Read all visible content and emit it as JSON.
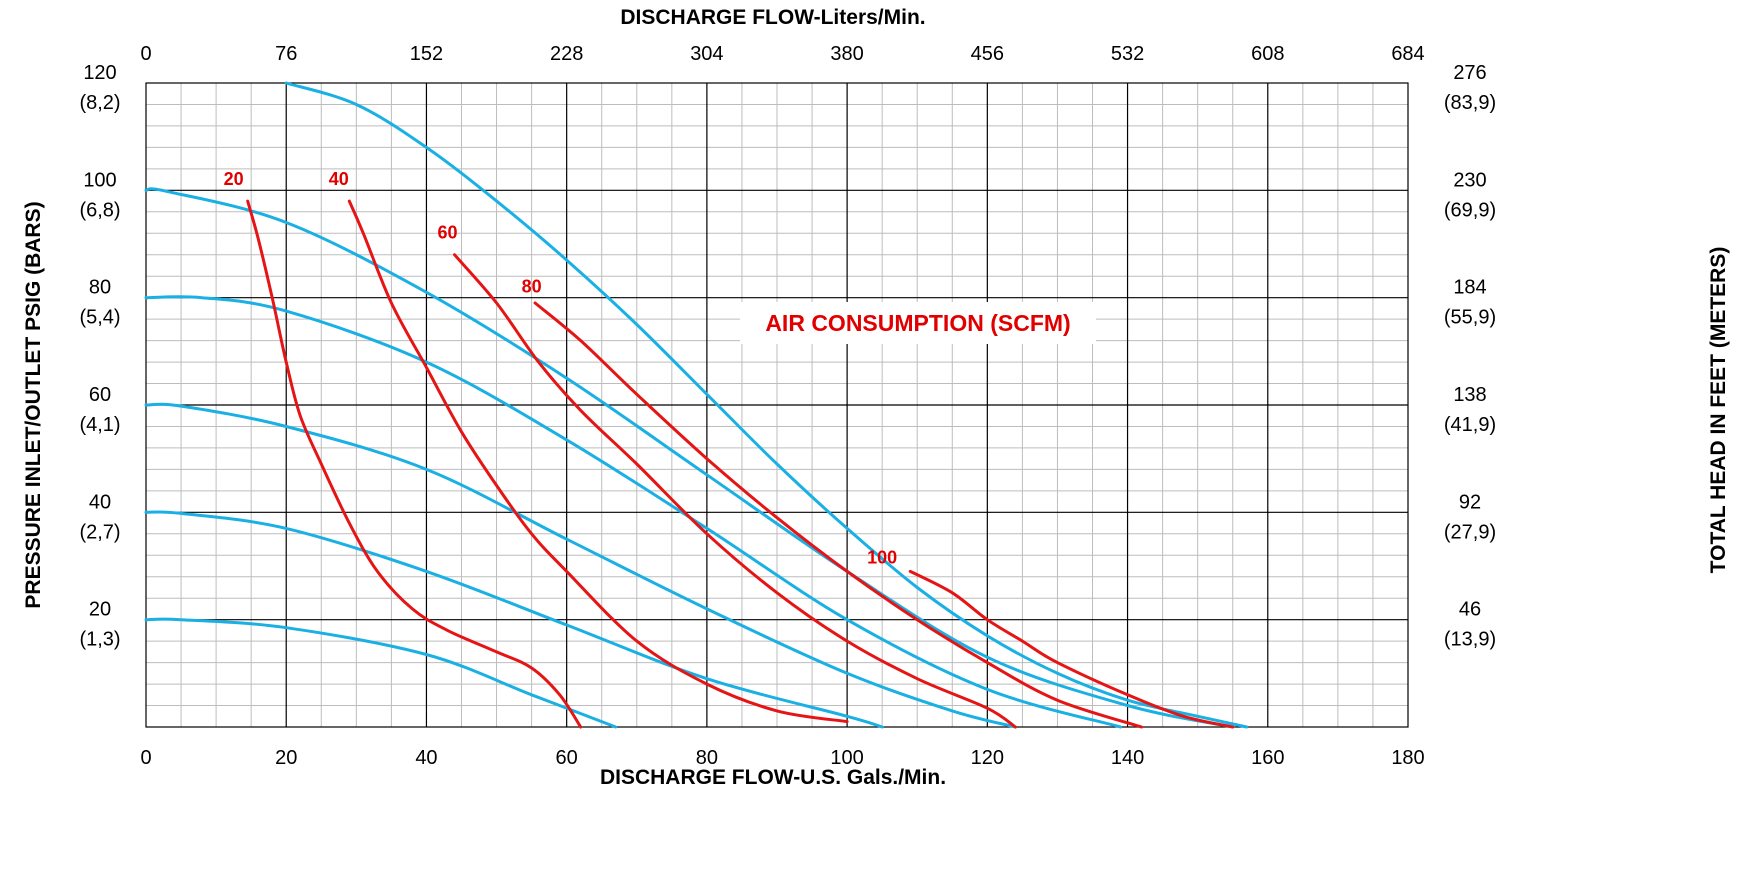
{
  "chart_data": {
    "type": "line",
    "title": "",
    "xlabel_bottom": "DISCHARGE FLOW-U.S. Gals./Min.",
    "xlabel_top": "DISCHARGE FLOW-Liters/Min.",
    "ylabel_left": "PRESSURE INLET/OUTLET PSIG (BARS)",
    "ylabel_right": "TOTAL HEAD IN FEET (METERS)",
    "annotation": "AIR CONSUMPTION (SCFM)",
    "xlim": [
      0,
      180
    ],
    "ylim": [
      0,
      120
    ],
    "grid": true,
    "x_ticks_bottom": [
      "0",
      "20",
      "40",
      "60",
      "80",
      "100",
      "120",
      "140",
      "160",
      "180"
    ],
    "x_ticks_top": [
      "0",
      "76",
      "152",
      "228",
      "304",
      "380",
      "456",
      "532",
      "608",
      "684"
    ],
    "y_ticks_left": [
      {
        "value": 20,
        "psi": "20",
        "bar": "(1,3)"
      },
      {
        "value": 40,
        "psi": "40",
        "bar": "(2,7)"
      },
      {
        "value": 60,
        "psi": "60",
        "bar": "(4,1)"
      },
      {
        "value": 80,
        "psi": "80",
        "bar": "(5,4)"
      },
      {
        "value": 100,
        "psi": "100",
        "bar": "(6,8)"
      },
      {
        "value": 120,
        "psi": "120",
        "bar": "(8,2)"
      }
    ],
    "y_ticks_right": [
      {
        "value": 20,
        "ft": "46",
        "m": "(13,9)"
      },
      {
        "value": 40,
        "ft": "92",
        "m": "(27,9)"
      },
      {
        "value": 60,
        "ft": "138",
        "m": "(41,9)"
      },
      {
        "value": 80,
        "ft": "184",
        "m": "(55,9)"
      },
      {
        "value": 100,
        "ft": "230",
        "m": "(69,9)"
      },
      {
        "value": 120,
        "ft": "276",
        "m": "(83,9)"
      }
    ],
    "pressure_curves": [
      {
        "points": [
          [
            0,
            20
          ],
          [
            5,
            20
          ],
          [
            20,
            18.5
          ],
          [
            40,
            13.5
          ],
          [
            55,
            6
          ],
          [
            67,
            0
          ]
        ]
      },
      {
        "points": [
          [
            0,
            40
          ],
          [
            5,
            39.8
          ],
          [
            20,
            37
          ],
          [
            40,
            29
          ],
          [
            60,
            19
          ],
          [
            80,
            9
          ],
          [
            100,
            2
          ],
          [
            105,
            0
          ]
        ]
      },
      {
        "points": [
          [
            0,
            60
          ],
          [
            5,
            59.8
          ],
          [
            20,
            56
          ],
          [
            40,
            48
          ],
          [
            60,
            35
          ],
          [
            80,
            22
          ],
          [
            100,
            10
          ],
          [
            115,
            3
          ],
          [
            124,
            0
          ]
        ]
      },
      {
        "points": [
          [
            0,
            80
          ],
          [
            8,
            80
          ],
          [
            20,
            77.5
          ],
          [
            40,
            68
          ],
          [
            60,
            53.5
          ],
          [
            80,
            37
          ],
          [
            100,
            20
          ],
          [
            120,
            7
          ],
          [
            139,
            0
          ]
        ]
      },
      {
        "points": [
          [
            0,
            100
          ],
          [
            3,
            99.8
          ],
          [
            20,
            94
          ],
          [
            40,
            81
          ],
          [
            60,
            65
          ],
          [
            80,
            47
          ],
          [
            100,
            29
          ],
          [
            120,
            13
          ],
          [
            140,
            4
          ],
          [
            155,
            0
          ]
        ]
      },
      {
        "points": [
          [
            20,
            120
          ],
          [
            30,
            116
          ],
          [
            40,
            108
          ],
          [
            50,
            98
          ],
          [
            60,
            87
          ],
          [
            70,
            75
          ],
          [
            80,
            62
          ],
          [
            90,
            49
          ],
          [
            100,
            37
          ],
          [
            110,
            26
          ],
          [
            120,
            17
          ],
          [
            130,
            10
          ],
          [
            140,
            5
          ],
          [
            150,
            2
          ],
          [
            157,
            0
          ]
        ]
      }
    ],
    "air_curves": [
      {
        "label": "20",
        "label_at": [
          12.5,
          101
        ],
        "points": [
          [
            14.5,
            98
          ],
          [
            16,
            91
          ],
          [
            18,
            80
          ],
          [
            20,
            68
          ],
          [
            22,
            58
          ],
          [
            25,
            49
          ],
          [
            29,
            38
          ],
          [
            33,
            29
          ],
          [
            38,
            22
          ],
          [
            43,
            18
          ],
          [
            50,
            14
          ],
          [
            55,
            11
          ],
          [
            59,
            6
          ],
          [
            62,
            0
          ]
        ]
      },
      {
        "label": "40",
        "label_at": [
          27.5,
          101
        ],
        "points": [
          [
            29,
            98
          ],
          [
            31,
            92
          ],
          [
            35,
            79
          ],
          [
            40,
            67
          ],
          [
            45,
            55
          ],
          [
            50,
            45
          ],
          [
            55,
            36
          ],
          [
            60,
            29
          ],
          [
            70,
            16
          ],
          [
            80,
            8
          ],
          [
            90,
            3
          ],
          [
            100,
            1
          ]
        ]
      },
      {
        "label": "60",
        "label_at": [
          43,
          91
        ],
        "points": [
          [
            44,
            88
          ],
          [
            50,
            79
          ],
          [
            56,
            68
          ],
          [
            62,
            59
          ],
          [
            70,
            49
          ],
          [
            80,
            36
          ],
          [
            90,
            25
          ],
          [
            100,
            16
          ],
          [
            110,
            9
          ],
          [
            120,
            3.5
          ],
          [
            124,
            0
          ]
        ]
      },
      {
        "label": "80",
        "label_at": [
          55,
          81
        ],
        "points": [
          [
            55.5,
            79
          ],
          [
            62,
            72
          ],
          [
            70,
            62
          ],
          [
            80,
            50
          ],
          [
            90,
            39
          ],
          [
            100,
            29
          ],
          [
            110,
            20
          ],
          [
            120,
            12
          ],
          [
            130,
            5
          ],
          [
            142,
            0
          ]
        ]
      },
      {
        "label": "100",
        "label_at": [
          105,
          30.5
        ],
        "points": [
          [
            109,
            29
          ],
          [
            115,
            25
          ],
          [
            120,
            20
          ],
          [
            125,
            16
          ],
          [
            130,
            12
          ],
          [
            140,
            6
          ],
          [
            148,
            2
          ],
          [
            155,
            0
          ]
        ]
      }
    ]
  }
}
